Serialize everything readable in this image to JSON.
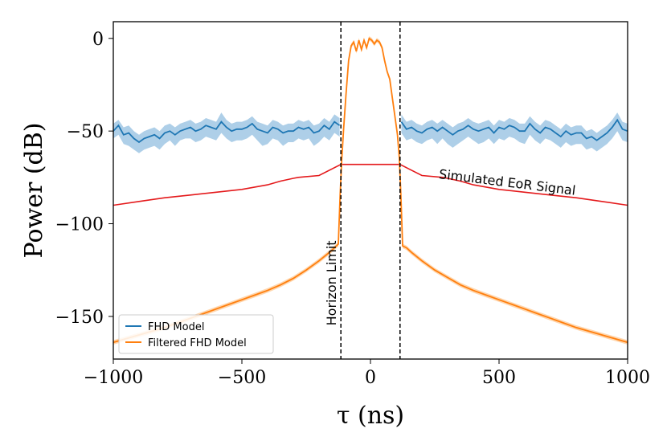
{
  "chart_data": {
    "type": "line",
    "xlabel": "τ (ns)",
    "ylabel": "Power (dB)",
    "xlim": [
      -1000,
      1000
    ],
    "ylim": [
      -173,
      9
    ],
    "xticks": [
      -1000,
      -500,
      0,
      500,
      1000
    ],
    "xtick_labels": [
      "−1000",
      "−500",
      "0",
      "500",
      "1000"
    ],
    "yticks": [
      0,
      -50,
      -100,
      -150
    ],
    "ytick_labels": [
      "0",
      "−50",
      "−100",
      "−150"
    ],
    "grid": false,
    "legend": {
      "placement": "lower-left",
      "entries": [
        {
          "label": "FHD Model",
          "color": "#1f77b4"
        },
        {
          "label": "Filtered FHD Model",
          "color": "#ff7f0e"
        }
      ]
    },
    "annotations": [
      {
        "text": "Horizon Limit",
        "x": -115,
        "y": -132,
        "rotation": -90
      },
      {
        "text": "Simulated EoR Signal",
        "x": 530,
        "y": -80,
        "rotation": 7
      }
    ],
    "vlines": [
      {
        "x": -115,
        "style": "dashed",
        "color": "#000000"
      },
      {
        "x": 115,
        "style": "dashed",
        "color": "#000000"
      }
    ],
    "series": [
      {
        "name": "FHD Model",
        "color": "#1f77b4",
        "band_color": "#aecfe8",
        "x": [
          -1000,
          -980,
          -960,
          -940,
          -920,
          -900,
          -880,
          -860,
          -840,
          -820,
          -800,
          -780,
          -760,
          -740,
          -720,
          -700,
          -680,
          -660,
          -640,
          -620,
          -600,
          -580,
          -560,
          -540,
          -520,
          -500,
          -480,
          -460,
          -440,
          -420,
          -400,
          -380,
          -360,
          -340,
          -320,
          -300,
          -280,
          -260,
          -240,
          -220,
          -200,
          -180,
          -160,
          -140,
          -120,
          120,
          140,
          160,
          180,
          200,
          220,
          240,
          260,
          280,
          300,
          320,
          340,
          360,
          380,
          400,
          420,
          440,
          460,
          480,
          500,
          520,
          540,
          560,
          580,
          600,
          620,
          640,
          660,
          680,
          700,
          720,
          740,
          760,
          780,
          800,
          820,
          840,
          860,
          880,
          900,
          920,
          940,
          960,
          980,
          1000
        ],
        "y": [
          -50,
          -47,
          -52,
          -51,
          -54,
          -56,
          -54,
          -53,
          -52,
          -54,
          -51,
          -50,
          -52,
          -50,
          -49,
          -48,
          -50,
          -49,
          -47,
          -48,
          -49,
          -45,
          -48,
          -50,
          -49,
          -49,
          -48,
          -46,
          -49,
          -50,
          -51,
          -48,
          -49,
          -51,
          -50,
          -50,
          -48,
          -49,
          -48,
          -51,
          -50,
          -47,
          -49,
          -45,
          -47,
          -45,
          -49,
          -48,
          -50,
          -51,
          -49,
          -48,
          -50,
          -48,
          -50,
          -52,
          -50,
          -49,
          -47,
          -49,
          -50,
          -49,
          -48,
          -51,
          -48,
          -49,
          -47,
          -48,
          -50,
          -50,
          -46,
          -49,
          -51,
          -48,
          -49,
          -51,
          -53,
          -50,
          -52,
          -51,
          -51,
          -54,
          -53,
          -55,
          -53,
          -51,
          -48,
          -44,
          -49,
          -50
        ],
        "band_low": [
          -54,
          -52,
          -57,
          -58,
          -60,
          -62,
          -60,
          -59,
          -58,
          -60,
          -57,
          -55,
          -58,
          -55,
          -54,
          -54,
          -56,
          -55,
          -53,
          -54,
          -55,
          -51,
          -54,
          -56,
          -55,
          -55,
          -54,
          -52,
          -55,
          -58,
          -57,
          -54,
          -55,
          -58,
          -56,
          -56,
          -54,
          -55,
          -54,
          -58,
          -56,
          -53,
          -55,
          -51,
          -53,
          -51,
          -55,
          -54,
          -56,
          -57,
          -55,
          -54,
          -57,
          -54,
          -57,
          -59,
          -57,
          -55,
          -53,
          -55,
          -57,
          -56,
          -54,
          -57,
          -54,
          -55,
          -53,
          -54,
          -56,
          -57,
          -52,
          -55,
          -57,
          -54,
          -55,
          -57,
          -59,
          -56,
          -58,
          -57,
          -57,
          -60,
          -59,
          -61,
          -59,
          -57,
          -54,
          -50,
          -55,
          -56
        ],
        "band_high": [
          -46,
          -44,
          -48,
          -47,
          -50,
          -52,
          -50,
          -49,
          -48,
          -50,
          -47,
          -46,
          -48,
          -46,
          -45,
          -44,
          -46,
          -45,
          -43,
          -44,
          -45,
          -40,
          -44,
          -46,
          -45,
          -45,
          -44,
          -42,
          -45,
          -46,
          -47,
          -44,
          -45,
          -47,
          -46,
          -46,
          -44,
          -45,
          -44,
          -47,
          -46,
          -43,
          -45,
          -41,
          -43,
          -41,
          -45,
          -44,
          -46,
          -47,
          -45,
          -44,
          -46,
          -44,
          -46,
          -48,
          -46,
          -45,
          -43,
          -45,
          -46,
          -45,
          -44,
          -47,
          -44,
          -45,
          -43,
          -44,
          -46,
          -46,
          -42,
          -45,
          -47,
          -44,
          -45,
          -47,
          -49,
          -46,
          -48,
          -47,
          -47,
          -50,
          -49,
          -51,
          -49,
          -47,
          -44,
          -40,
          -45,
          -46
        ]
      },
      {
        "name": "Simulated EoR Signal",
        "color": "#e41a1c",
        "x": [
          -1000,
          -900,
          -800,
          -700,
          -600,
          -500,
          -400,
          -350,
          -300,
          -280,
          -200,
          -115,
          115,
          200,
          280,
          300,
          350,
          400,
          500,
          600,
          700,
          800,
          900,
          1000
        ],
        "y": [
          -90,
          -88,
          -86,
          -84.5,
          -83,
          -81.5,
          -79,
          -77,
          -75.5,
          -75,
          -74,
          -68,
          -68,
          -74,
          -75,
          -75.5,
          -77,
          -79,
          -81.5,
          -83,
          -84.5,
          -86,
          -88,
          -90
        ]
      },
      {
        "name": "Filtered FHD Model",
        "color": "#ff7f0e",
        "band_color": "#ffcc99",
        "x": [
          -1000,
          -950,
          -900,
          -850,
          -800,
          -750,
          -700,
          -650,
          -600,
          -550,
          -500,
          -450,
          -400,
          -350,
          -300,
          -250,
          -200,
          -160,
          -140,
          -125,
          -118,
          -112,
          -105,
          -95,
          -85,
          -75,
          -65,
          -55,
          -45,
          -35,
          -25,
          -15,
          -5,
          5,
          15,
          25,
          35,
          45,
          55,
          65,
          75,
          85,
          95,
          105,
          112,
          118,
          125,
          140,
          160,
          200,
          250,
          300,
          350,
          400,
          450,
          500,
          550,
          600,
          650,
          700,
          750,
          800,
          850,
          900,
          950,
          1000
        ],
        "y": [
          -164,
          -162,
          -160,
          -158,
          -156,
          -153.5,
          -151,
          -148.5,
          -146,
          -143.5,
          -141,
          -138.5,
          -136,
          -133,
          -129.5,
          -125,
          -120,
          -115.5,
          -113,
          -111,
          -85,
          -66,
          -50,
          -30,
          -12,
          -4,
          -2,
          -7,
          -1,
          -6,
          -1,
          -5,
          0,
          -1,
          -3,
          -1,
          -2,
          -5,
          -12,
          -18,
          -22,
          -32,
          -42,
          -52,
          -64,
          -84,
          -112,
          -113,
          -115.5,
          -120,
          -125,
          -129,
          -133,
          -136,
          -138.5,
          -141,
          -143.5,
          -146,
          -148.5,
          -151,
          -153.5,
          -156,
          -158,
          -160,
          -162,
          -164
        ]
      }
    ]
  }
}
